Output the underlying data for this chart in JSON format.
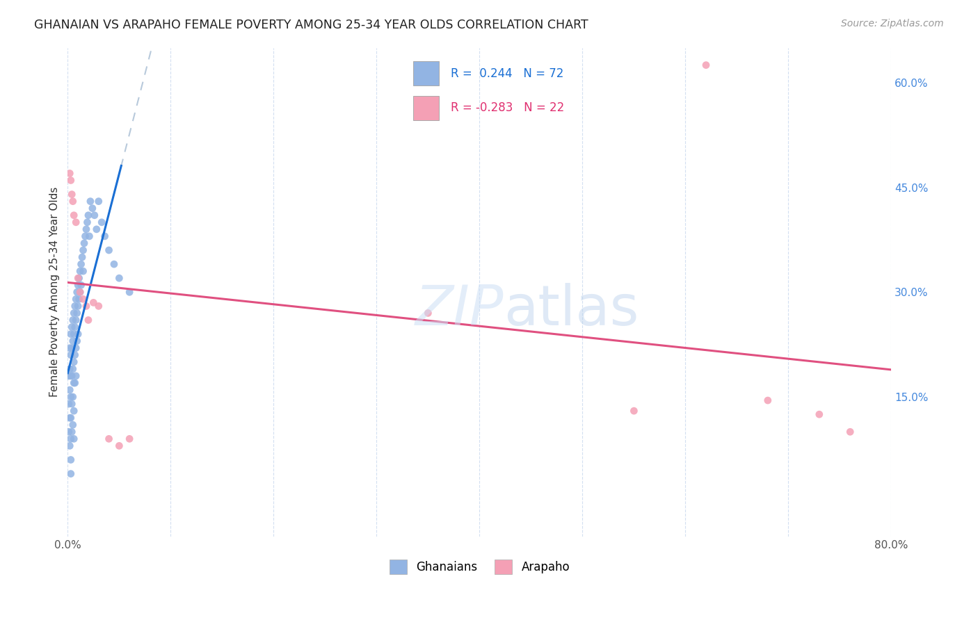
{
  "title": "GHANAIAN VS ARAPAHO FEMALE POVERTY AMONG 25-34 YEAR OLDS CORRELATION CHART",
  "source": "Source: ZipAtlas.com",
  "ylabel": "Female Poverty Among 25-34 Year Olds",
  "xlim": [
    0.0,
    0.8
  ],
  "ylim": [
    -0.05,
    0.65
  ],
  "ghanaian_color": "#92b4e3",
  "arapaho_color": "#f4a0b5",
  "ghanaian_R": 0.244,
  "ghanaian_N": 72,
  "arapaho_R": -0.283,
  "arapaho_N": 22,
  "legend_R_color_blue": "#1a6fd4",
  "legend_R_color_pink": "#e03070",
  "legend_label_ghanaians": "Ghanaians",
  "legend_label_arapaho": "Arapaho",
  "background_color": "#ffffff",
  "ghanaian_x": [
    0.001,
    0.001,
    0.001,
    0.002,
    0.002,
    0.002,
    0.002,
    0.002,
    0.003,
    0.003,
    0.003,
    0.003,
    0.003,
    0.003,
    0.003,
    0.003,
    0.004,
    0.004,
    0.004,
    0.004,
    0.004,
    0.005,
    0.005,
    0.005,
    0.005,
    0.005,
    0.006,
    0.006,
    0.006,
    0.006,
    0.006,
    0.006,
    0.007,
    0.007,
    0.007,
    0.007,
    0.008,
    0.008,
    0.008,
    0.008,
    0.009,
    0.009,
    0.009,
    0.01,
    0.01,
    0.01,
    0.011,
    0.011,
    0.012,
    0.012,
    0.013,
    0.013,
    0.014,
    0.015,
    0.015,
    0.016,
    0.017,
    0.018,
    0.019,
    0.02,
    0.021,
    0.022,
    0.024,
    0.026,
    0.028,
    0.03,
    0.033,
    0.036,
    0.04,
    0.045,
    0.05,
    0.06
  ],
  "ghanaian_y": [
    0.18,
    0.14,
    0.1,
    0.22,
    0.19,
    0.16,
    0.12,
    0.08,
    0.24,
    0.21,
    0.18,
    0.15,
    0.12,
    0.09,
    0.06,
    0.04,
    0.25,
    0.22,
    0.18,
    0.14,
    0.1,
    0.26,
    0.23,
    0.19,
    0.15,
    0.11,
    0.27,
    0.24,
    0.2,
    0.17,
    0.13,
    0.09,
    0.28,
    0.25,
    0.21,
    0.17,
    0.29,
    0.26,
    0.22,
    0.18,
    0.3,
    0.27,
    0.23,
    0.31,
    0.28,
    0.24,
    0.32,
    0.29,
    0.33,
    0.3,
    0.34,
    0.31,
    0.35,
    0.36,
    0.33,
    0.37,
    0.38,
    0.39,
    0.4,
    0.41,
    0.38,
    0.43,
    0.42,
    0.41,
    0.39,
    0.43,
    0.4,
    0.38,
    0.36,
    0.34,
    0.32,
    0.3
  ],
  "arapaho_x": [
    0.002,
    0.003,
    0.004,
    0.005,
    0.006,
    0.008,
    0.01,
    0.012,
    0.015,
    0.018,
    0.02,
    0.025,
    0.03,
    0.04,
    0.05,
    0.06,
    0.35,
    0.55,
    0.62,
    0.68,
    0.73,
    0.76
  ],
  "arapaho_y": [
    0.47,
    0.46,
    0.44,
    0.43,
    0.41,
    0.4,
    0.32,
    0.3,
    0.29,
    0.28,
    0.26,
    0.285,
    0.28,
    0.09,
    0.08,
    0.09,
    0.27,
    0.13,
    0.625,
    0.145,
    0.125,
    0.1
  ]
}
